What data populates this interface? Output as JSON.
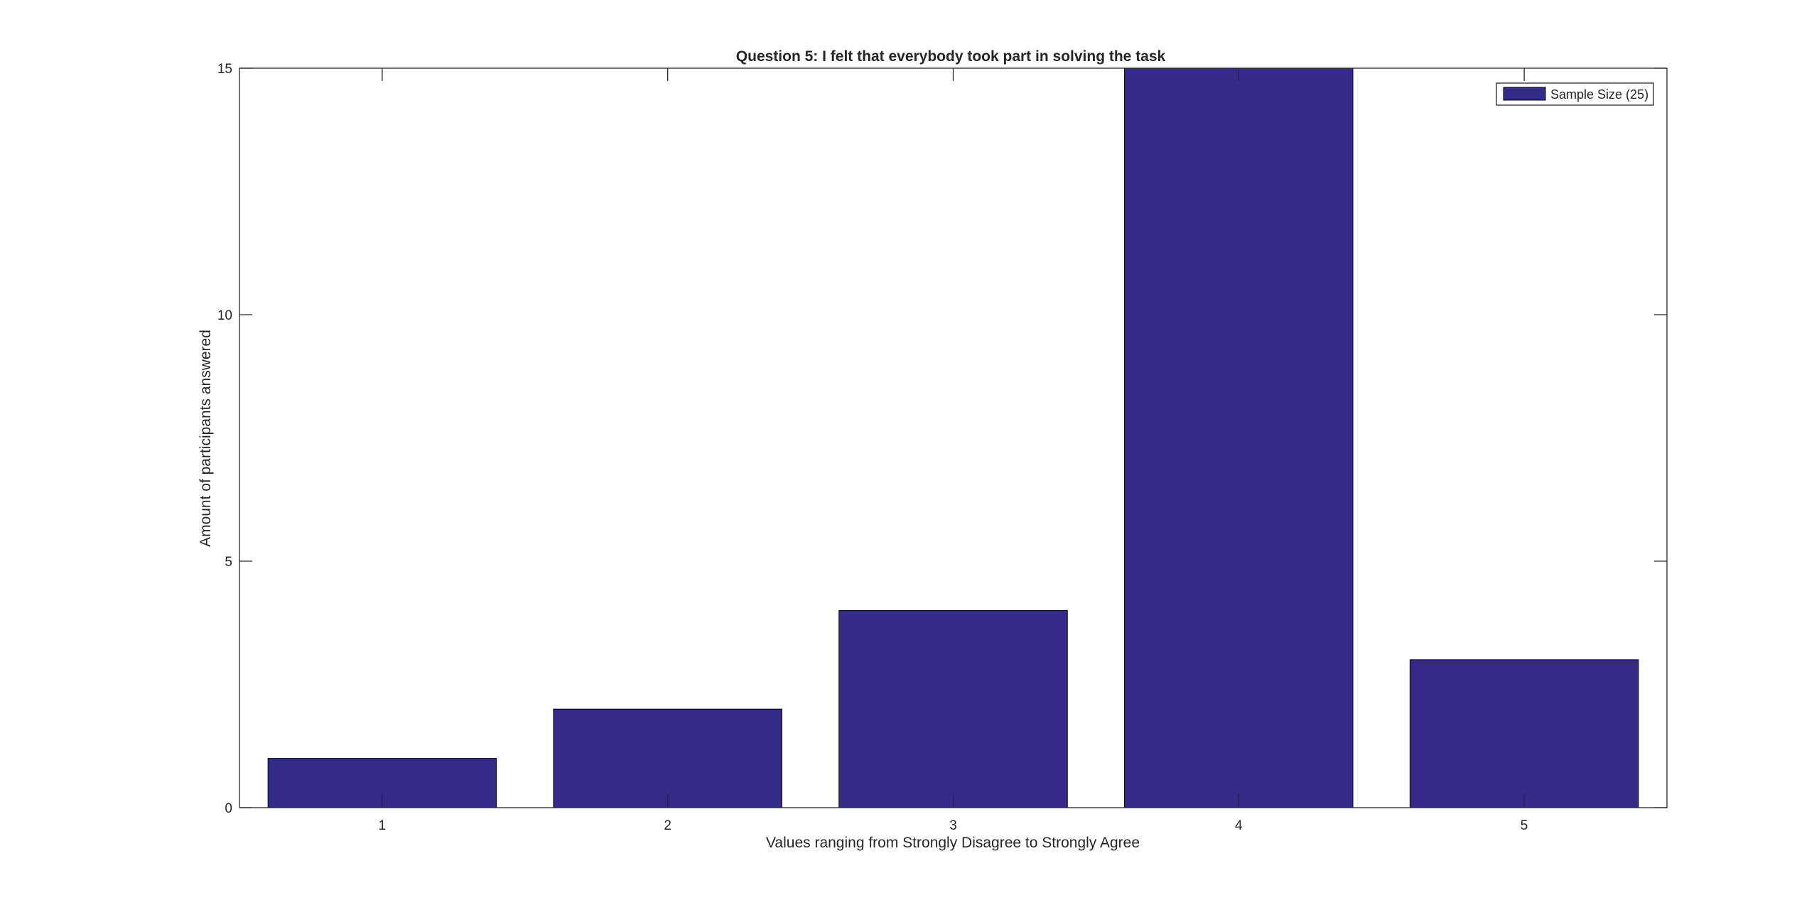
{
  "chart_data": {
    "type": "bar",
    "title": "Question 5: I felt that everybody took part in solving the task",
    "xlabel": "Values ranging from Strongly Disagree to Strongly Agree",
    "ylabel": "Amount of participants answered",
    "categories": [
      "1",
      "2",
      "3",
      "4",
      "5"
    ],
    "series": [
      {
        "name": "Sample Size (25)",
        "values": [
          1,
          2,
          4,
          15,
          3
        ],
        "color": "#352a87"
      }
    ],
    "ylim": [
      0,
      15
    ],
    "yticks": [
      0,
      5,
      10,
      15
    ],
    "grid": false,
    "legend_position": "top-right"
  }
}
